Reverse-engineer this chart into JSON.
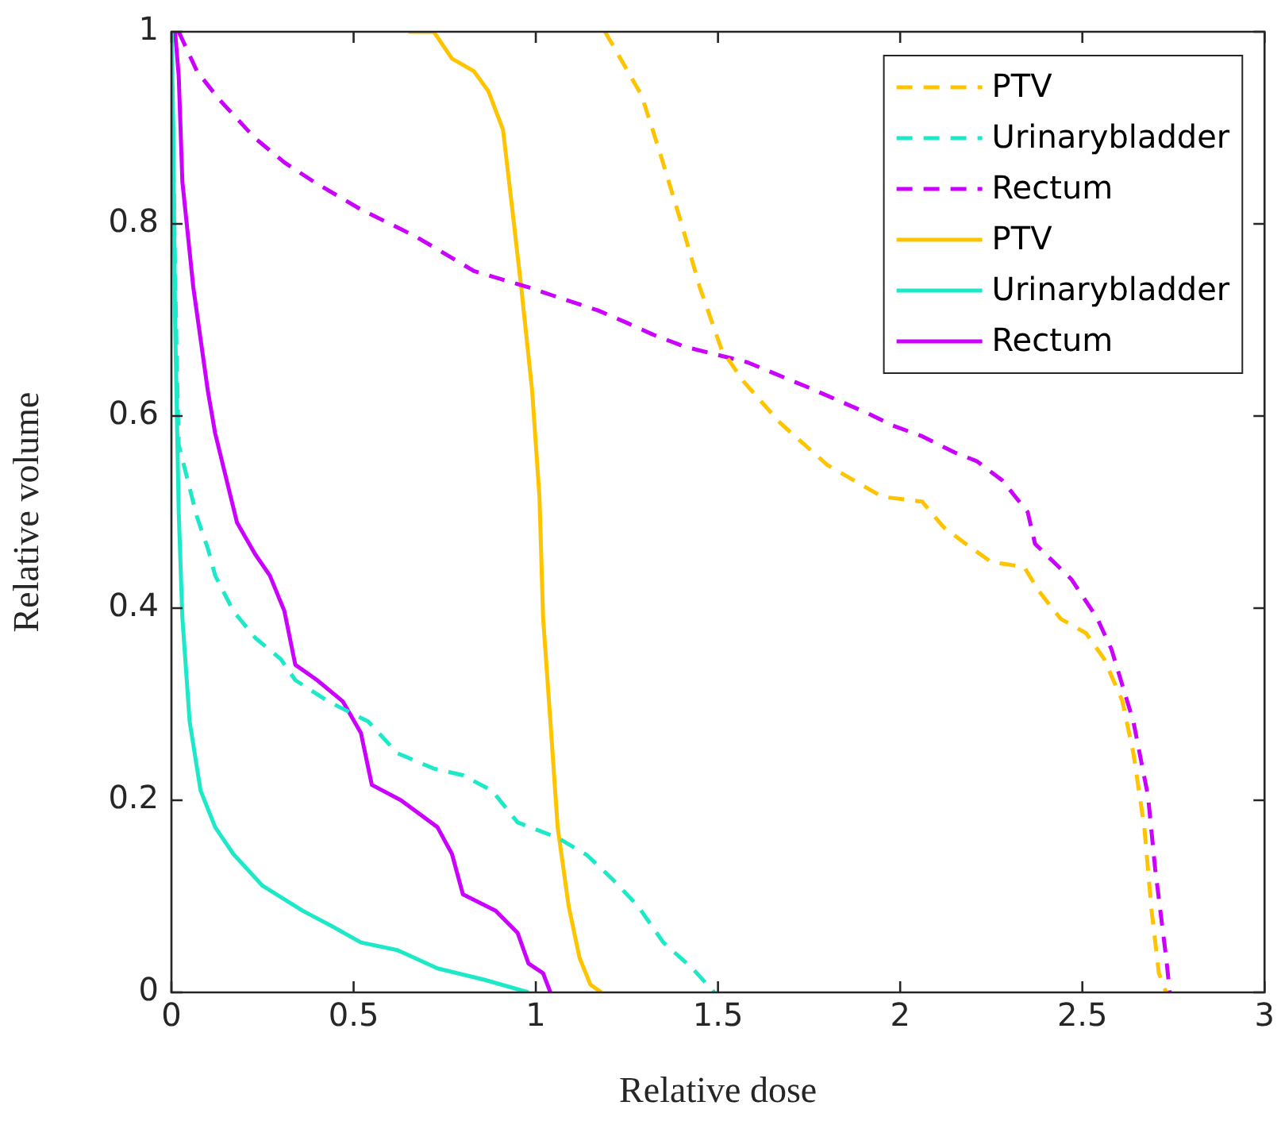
{
  "chart_data": {
    "type": "line",
    "xlabel": "Relative dose",
    "ylabel": "Relative volume",
    "xlim": [
      0,
      3
    ],
    "ylim": [
      0,
      1
    ],
    "xticks": [
      0,
      0.5,
      1,
      1.5,
      2,
      2.5,
      3
    ],
    "yticks": [
      0,
      0.2,
      0.4,
      0.6,
      0.8,
      1
    ],
    "grid": false,
    "legend": "top right",
    "marker": "none",
    "series": [
      {
        "name": "PTV",
        "color": "#ffc400",
        "line_style": "dashed",
        "x": [
          1.19,
          1.29,
          1.34,
          1.4,
          1.45,
          1.51,
          1.57,
          1.67,
          1.8,
          1.95,
          2.06,
          2.12,
          2.18,
          2.25,
          2.34,
          2.38,
          2.44,
          2.51,
          2.56,
          2.61,
          2.64,
          2.67,
          2.69,
          2.71,
          2.73
        ],
        "values": [
          1,
          0.934,
          0.875,
          0.8,
          0.734,
          0.669,
          0.636,
          0.593,
          0.549,
          0.516,
          0.511,
          0.484,
          0.467,
          0.448,
          0.443,
          0.418,
          0.389,
          0.374,
          0.347,
          0.303,
          0.249,
          0.172,
          0.085,
          0.02,
          0
        ]
      },
      {
        "name": "Urinarybladder",
        "color": "#1de9c8",
        "line_style": "dashed",
        "x": [
          0,
          0.01,
          0.015,
          0.02,
          0.07,
          0.1,
          0.12,
          0.17,
          0.23,
          0.3,
          0.34,
          0.43,
          0.54,
          0.62,
          0.72,
          0.8,
          0.88,
          0.95,
          1.06,
          1.14,
          1.21,
          1.28,
          1.35,
          1.43,
          1.49
        ],
        "values": [
          1,
          0.75,
          0.65,
          0.57,
          0.495,
          0.462,
          0.434,
          0.397,
          0.369,
          0.347,
          0.325,
          0.303,
          0.282,
          0.249,
          0.233,
          0.226,
          0.21,
          0.177,
          0.161,
          0.143,
          0.118,
          0.09,
          0.052,
          0.025,
          0
        ]
      },
      {
        "name": "Rectum",
        "color": "#cc00ff",
        "line_style": "dashed",
        "x": [
          0.02,
          0.07,
          0.13,
          0.23,
          0.31,
          0.39,
          0.52,
          0.67,
          0.83,
          0.98,
          1.05,
          1.17,
          1.25,
          1.32,
          1.41,
          1.58,
          1.74,
          1.91,
          1.98,
          2.06,
          2.15,
          2.21,
          2.28,
          2.35,
          2.37,
          2.47,
          2.54,
          2.58,
          2.64,
          2.68,
          2.7,
          2.73,
          2.74
        ],
        "values": [
          1,
          0.959,
          0.93,
          0.889,
          0.864,
          0.844,
          0.815,
          0.787,
          0.751,
          0.734,
          0.725,
          0.71,
          0.697,
          0.685,
          0.672,
          0.656,
          0.631,
          0.603,
          0.59,
          0.579,
          0.562,
          0.553,
          0.533,
          0.5,
          0.467,
          0.43,
          0.39,
          0.357,
          0.282,
          0.205,
          0.128,
          0.036,
          0
        ]
      },
      {
        "name": "PTV",
        "color": "#ffc400",
        "line_style": "solid",
        "x": [
          0.65,
          0.72,
          0.77,
          0.83,
          0.87,
          0.91,
          0.93,
          0.96,
          0.99,
          1.01,
          1.02,
          1.04,
          1.06,
          1.09,
          1.12,
          1.15,
          1.18
        ],
        "values": [
          1,
          1,
          0.972,
          0.959,
          0.938,
          0.898,
          0.833,
          0.734,
          0.626,
          0.516,
          0.39,
          0.282,
          0.172,
          0.09,
          0.036,
          0.008,
          0
        ]
      },
      {
        "name": "Urinarybladder",
        "color": "#1de9c8",
        "line_style": "solid",
        "x": [
          0,
          0.005,
          0.01,
          0.02,
          0.03,
          0.05,
          0.08,
          0.12,
          0.17,
          0.25,
          0.36,
          0.44,
          0.52,
          0.62,
          0.73,
          0.86,
          0.98
        ],
        "values": [
          1,
          0.9,
          0.7,
          0.5,
          0.39,
          0.282,
          0.21,
          0.172,
          0.144,
          0.111,
          0.085,
          0.069,
          0.052,
          0.044,
          0.025,
          0.013,
          0
        ]
      },
      {
        "name": "Rectum",
        "color": "#cc00ff",
        "line_style": "solid",
        "x": [
          0.01,
          0.02,
          0.03,
          0.06,
          0.1,
          0.12,
          0.18,
          0.23,
          0.27,
          0.31,
          0.34,
          0.4,
          0.47,
          0.52,
          0.55,
          0.63,
          0.73,
          0.77,
          0.8,
          0.89,
          0.95,
          0.98,
          1.02,
          1.04
        ],
        "values": [
          1,
          0.954,
          0.844,
          0.734,
          0.626,
          0.582,
          0.489,
          0.456,
          0.434,
          0.397,
          0.341,
          0.325,
          0.303,
          0.27,
          0.216,
          0.2,
          0.172,
          0.144,
          0.102,
          0.085,
          0.062,
          0.03,
          0.02,
          0
        ]
      }
    ]
  }
}
